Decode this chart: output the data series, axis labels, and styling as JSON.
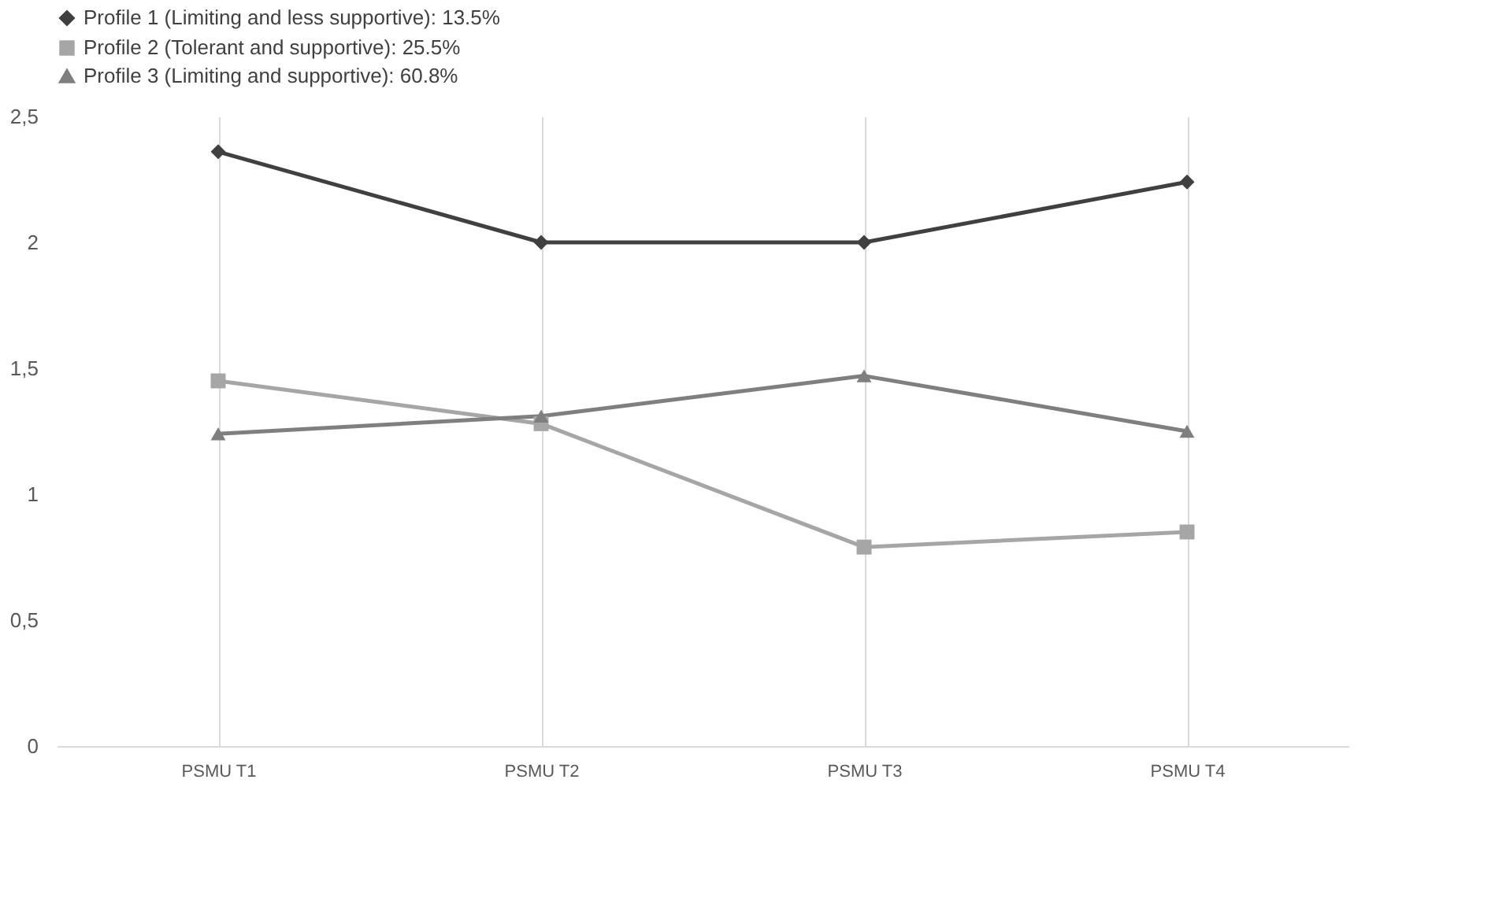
{
  "chart_data": {
    "type": "line",
    "categories": [
      "PSMU T1",
      "PSMU T2",
      "PSMU T3",
      "PSMU T4"
    ],
    "series": [
      {
        "name": "Profile 1 (Limiting and less supportive): 13.5%",
        "color": "#404040",
        "marker": "diamond",
        "values": [
          2.36,
          2.0,
          2.0,
          2.24
        ]
      },
      {
        "name": "Profile 2 (Tolerant and supportive): 25.5%",
        "color": "#a6a6a6",
        "marker": "square",
        "values": [
          1.45,
          1.28,
          0.79,
          0.85
        ]
      },
      {
        "name": "Profile 3 (Limiting and supportive): 60.8%",
        "color": "#7f7f7f",
        "marker": "triangle",
        "values": [
          1.24,
          1.31,
          1.47,
          1.25
        ]
      }
    ],
    "ylim": [
      0,
      2.5
    ],
    "yticks": [
      0,
      {
        "value": 0.5,
        "label": "0,5"
      },
      1,
      {
        "value": 1.5,
        "label": "1,5"
      },
      2,
      {
        "value": 2.5,
        "label": "2,5"
      }
    ],
    "grid": "x",
    "legend": "top",
    "line_style": "solid"
  }
}
